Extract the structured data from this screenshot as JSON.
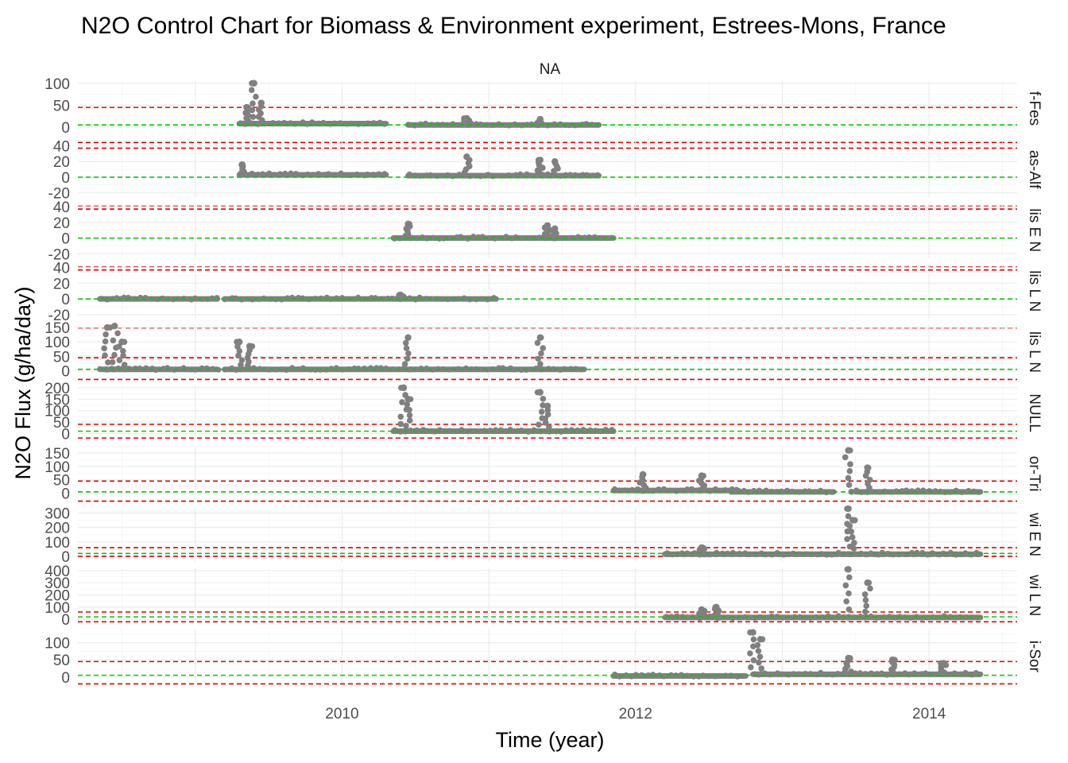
{
  "chart_data": {
    "type": "scatter",
    "title": "N2O Control Chart for Biomass & Environment experiment, Estrees-Mons, France",
    "xlabel": "Time (year)",
    "ylabel": "N2O Flux (g/ha/day)",
    "strip_label": "NA",
    "x_ticks": [
      "2010",
      "2012",
      "2014"
    ],
    "xlim": [
      2008.2,
      2014.6
    ],
    "grid": true,
    "colors": {
      "points": "#808080",
      "center_line": "#00cc00",
      "limit_line": "#e00000"
    },
    "panels": [
      {
        "label": "f-Fes",
        "ylim": [
          -20,
          105
        ],
        "yticks": [
          0,
          50,
          100
        ],
        "center": 5,
        "ucl": 45,
        "lcl": -35,
        "segments": [
          {
            "start": 2009.3,
            "end": 2010.3,
            "base": 8
          },
          {
            "start": 2010.45,
            "end": 2011.75,
            "base": 5
          }
        ],
        "spikes": [
          {
            "x": 2009.4,
            "y": 100
          },
          {
            "x": 2009.45,
            "y": 55
          },
          {
            "x": 2009.35,
            "y": 45
          },
          {
            "x": 2010.85,
            "y": 20
          },
          {
            "x": 2011.35,
            "y": 18
          }
        ]
      },
      {
        "label": "as-Alf",
        "ylim": [
          -25,
          45
        ],
        "yticks": [
          -20,
          0,
          20,
          40
        ],
        "center": 0,
        "ucl": 37,
        "lcl": -37,
        "segments": [
          {
            "start": 2009.3,
            "end": 2010.3,
            "base": 3
          },
          {
            "start": 2010.45,
            "end": 2011.75,
            "base": 2
          }
        ],
        "spikes": [
          {
            "x": 2009.32,
            "y": 16
          },
          {
            "x": 2010.85,
            "y": 26
          },
          {
            "x": 2011.35,
            "y": 22
          },
          {
            "x": 2011.45,
            "y": 20
          }
        ]
      },
      {
        "label": "lis E N",
        "ylim": [
          -25,
          45
        ],
        "yticks": [
          -20,
          0,
          20,
          40
        ],
        "center": 0,
        "ucl": 37,
        "lcl": -37,
        "segments": [
          {
            "start": 2010.35,
            "end": 2011.85,
            "base": 0
          }
        ],
        "spikes": [
          {
            "x": 2010.45,
            "y": 18
          },
          {
            "x": 2011.4,
            "y": 16
          },
          {
            "x": 2011.45,
            "y": 12
          }
        ]
      },
      {
        "label": "lis L N",
        "ylim": [
          -25,
          45
        ],
        "yticks": [
          -20,
          0,
          20,
          40
        ],
        "center": 0,
        "ucl": 37,
        "lcl": -37,
        "segments": [
          {
            "start": 2008.35,
            "end": 2009.15,
            "base": 0
          },
          {
            "start": 2009.2,
            "end": 2011.05,
            "base": 0
          }
        ],
        "spikes": [
          {
            "x": 2010.4,
            "y": 5
          }
        ]
      },
      {
        "label": "lis L N",
        "ylim": [
          -30,
          160
        ],
        "yticks": [
          0,
          50,
          100,
          150
        ],
        "center": 5,
        "ucl": 45,
        "lcl": -30,
        "segments": [
          {
            "start": 2008.35,
            "end": 2009.15,
            "base": 5
          },
          {
            "start": 2009.2,
            "end": 2011.65,
            "base": 5
          }
        ],
        "spikes": [
          {
            "x": 2008.4,
            "y": 150
          },
          {
            "x": 2008.45,
            "y": 155
          },
          {
            "x": 2008.5,
            "y": 100
          },
          {
            "x": 2009.3,
            "y": 100
          },
          {
            "x": 2009.37,
            "y": 85
          },
          {
            "x": 2010.45,
            "y": 115
          },
          {
            "x": 2011.35,
            "y": 115
          }
        ]
      },
      {
        "label": "NULL",
        "ylim": [
          -30,
          210
        ],
        "yticks": [
          0,
          50,
          100,
          150,
          200
        ],
        "center": 10,
        "ucl": 40,
        "lcl": -20,
        "segments": [
          {
            "start": 2010.35,
            "end": 2011.85,
            "base": 10
          }
        ],
        "spikes": [
          {
            "x": 2010.42,
            "y": 200
          },
          {
            "x": 2010.45,
            "y": 150
          },
          {
            "x": 2011.35,
            "y": 180
          },
          {
            "x": 2011.4,
            "y": 120
          }
        ]
      },
      {
        "label": "or-Tri",
        "ylim": [
          -30,
          175
        ],
        "yticks": [
          0,
          50,
          100,
          150
        ],
        "center": 5,
        "ucl": 45,
        "lcl": -30,
        "segments": [
          {
            "start": 2011.85,
            "end": 2012.7,
            "base": 10
          },
          {
            "start": 2012.65,
            "end": 2013.35,
            "base": 5
          },
          {
            "start": 2013.5,
            "end": 2014.35,
            "base": 5
          }
        ],
        "spikes": [
          {
            "x": 2012.05,
            "y": 70
          },
          {
            "x": 2012.45,
            "y": 65
          },
          {
            "x": 2013.45,
            "y": 160
          },
          {
            "x": 2013.58,
            "y": 95
          }
        ]
      },
      {
        "label": "wi E N",
        "ylim": [
          -40,
          340
        ],
        "yticks": [
          0,
          100,
          200,
          300
        ],
        "center": 20,
        "ucl": 60,
        "lcl": 0,
        "segments": [
          {
            "start": 2012.2,
            "end": 2014.35,
            "base": 15
          }
        ],
        "spikes": [
          {
            "x": 2012.45,
            "y": 60
          },
          {
            "x": 2013.45,
            "y": 330
          },
          {
            "x": 2013.48,
            "y": 250
          }
        ]
      },
      {
        "label": "wi L N",
        "ylim": [
          -30,
          420
        ],
        "yticks": [
          0,
          100,
          200,
          300,
          400
        ],
        "center": 20,
        "ucl": 60,
        "lcl": -20,
        "segments": [
          {
            "start": 2012.2,
            "end": 2014.35,
            "base": 15
          }
        ],
        "spikes": [
          {
            "x": 2012.45,
            "y": 80
          },
          {
            "x": 2012.55,
            "y": 100
          },
          {
            "x": 2013.45,
            "y": 410
          },
          {
            "x": 2013.58,
            "y": 300
          }
        ]
      },
      {
        "label": "i-Sor",
        "ylim": [
          -20,
          140
        ],
        "yticks": [
          0,
          50,
          100
        ],
        "center": 5,
        "ucl": 45,
        "lcl": -20,
        "segments": [
          {
            "start": 2011.85,
            "end": 2012.75,
            "base": 3
          },
          {
            "start": 2012.8,
            "end": 2014.35,
            "base": 8
          }
        ],
        "spikes": [
          {
            "x": 2012.8,
            "y": 130
          },
          {
            "x": 2012.85,
            "y": 110
          },
          {
            "x": 2013.45,
            "y": 55
          },
          {
            "x": 2013.75,
            "y": 50
          },
          {
            "x": 2014.1,
            "y": 40
          }
        ]
      }
    ]
  }
}
